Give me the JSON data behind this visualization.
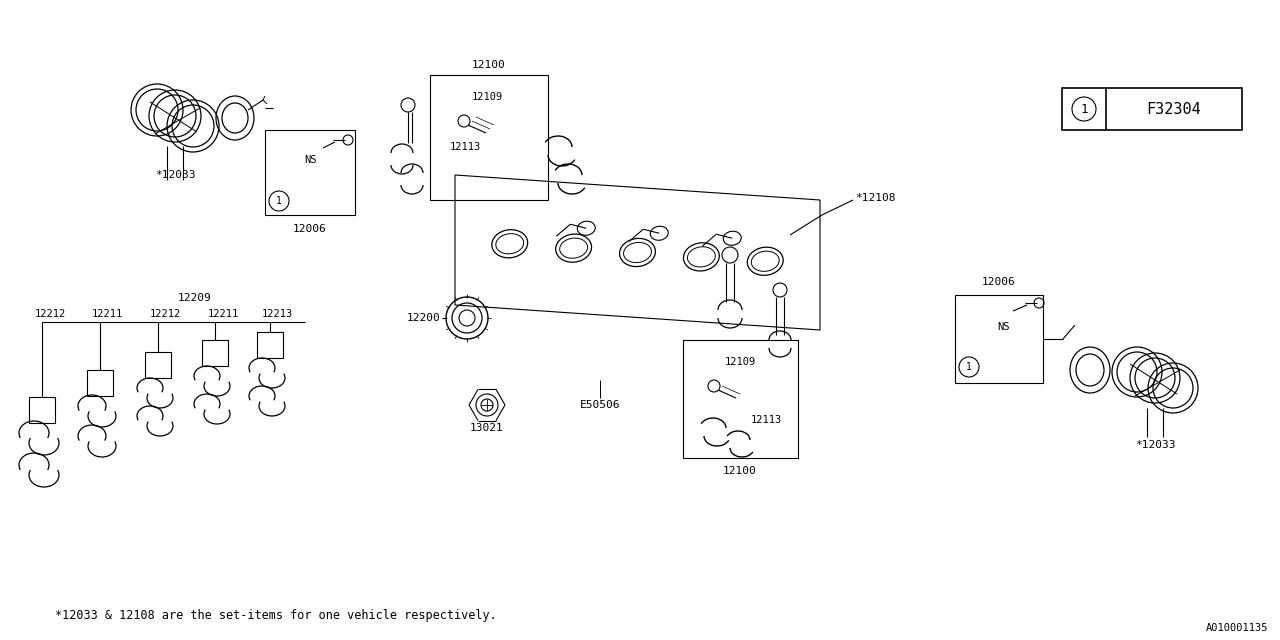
{
  "bg_color": "#ffffff",
  "lc": "#000000",
  "figw": 12.8,
  "figh": 6.4,
  "footer": "*12033 & 12108 are the set-items for one vehicle respectively.",
  "diagram_id": "A010001135",
  "legend_code": "F32304",
  "parts_labels": {
    "12033_tl": "*12033",
    "12006_tl": "12006",
    "NS_tl": "NS",
    "12100_tc": "12100",
    "12109_tc": "12109",
    "12113_tc": "12113",
    "12108": "*12108",
    "12200": "12200",
    "13021": "13021",
    "E50506": "E50506",
    "12209": "12209",
    "12212_1": "12212",
    "12211_1": "12211",
    "12212_2": "12212",
    "12211_2": "12211",
    "12213": "12213",
    "12100_br": "12100",
    "12109_br": "12109",
    "12113_br": "12113",
    "12006_br": "12006",
    "12033_br": "*12033",
    "NS_br": "NS"
  }
}
